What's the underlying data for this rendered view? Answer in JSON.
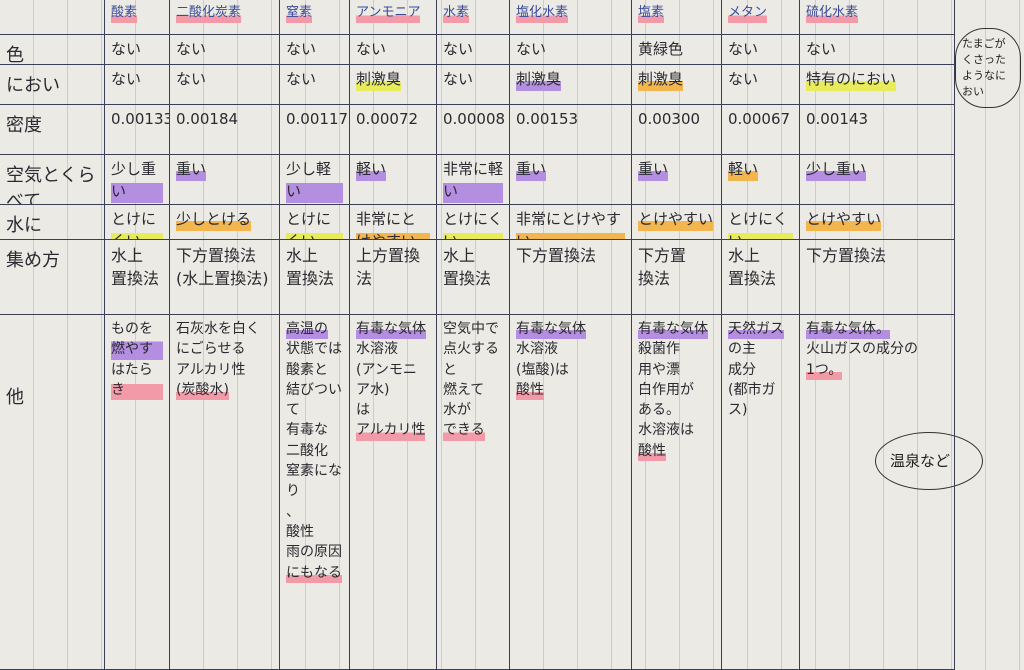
{
  "header": {
    "columns": [
      "酸素",
      "二酸化炭素",
      "窒素",
      "アンモニア",
      "水素",
      "塩化水素",
      "塩素",
      "メタン",
      "硫化水素"
    ]
  },
  "rows": [
    {
      "label": "色",
      "cells": [
        [
          "ない"
        ],
        [
          "ない"
        ],
        [
          "ない"
        ],
        [
          "ない"
        ],
        [
          "ない"
        ],
        [
          "ない"
        ],
        [
          "黄緑色"
        ],
        [
          "ない"
        ],
        [
          "ない"
        ]
      ]
    },
    {
      "label": "におい",
      "cells": [
        [
          "ない"
        ],
        [
          "ない"
        ],
        [
          "ない"
        ],
        [
          "刺激臭"
        ],
        [
          "ない"
        ],
        [
          "刺激臭"
        ],
        [
          "刺激臭"
        ],
        [
          "ない"
        ],
        [
          "特有のにおい"
        ]
      ]
    },
    {
      "label": "密度",
      "cells": [
        [
          "0.00133"
        ],
        [
          "0.00184"
        ],
        [
          "0.00117"
        ],
        [
          "0.00072"
        ],
        [
          "0.00008"
        ],
        [
          "0.00153"
        ],
        [
          "0.00300"
        ],
        [
          "0.00067"
        ],
        [
          "0.00143"
        ]
      ]
    },
    {
      "label": "空気とくらべて",
      "cells": [
        [
          "少し重い"
        ],
        [
          "重い"
        ],
        [
          "少し軽い"
        ],
        [
          "軽い"
        ],
        [
          "非常に軽い"
        ],
        [
          "重い"
        ],
        [
          "重い"
        ],
        [
          "軽い"
        ],
        [
          "少し重い"
        ]
      ]
    },
    {
      "label": "水に",
      "cells": [
        [
          "とけにくい"
        ],
        [
          "少しとける"
        ],
        [
          "とけにくい"
        ],
        [
          "非常にとけやすい"
        ],
        [
          "とけにくい"
        ],
        [
          "非常にとけやすい"
        ],
        [
          "とけやすい"
        ],
        [
          "とけにくい"
        ],
        [
          "とけやすい"
        ]
      ]
    },
    {
      "label": "集め方",
      "cells": [
        [
          "水上",
          "置換法"
        ],
        [
          "下方置換法",
          "(水上置換法)"
        ],
        [
          "水上",
          "置換法"
        ],
        [
          "上方置換",
          "法"
        ],
        [
          "水上",
          "置換法"
        ],
        [
          "下方置換法"
        ],
        [
          "下方置",
          "換法"
        ],
        [
          "水上",
          "置換法"
        ],
        [
          "下方置換法"
        ]
      ]
    },
    {
      "label": "他",
      "cells": [
        [
          "ものを燃やす",
          "はたらき"
        ],
        [
          "石灰水を白く",
          "にごらせる",
          "アルカリ性",
          "(炭酸水)"
        ],
        [
          "高温の",
          "状態では",
          "酸素と",
          "結びついて",
          "有毒な",
          "二酸化",
          "窒素になり",
          "、",
          "酸性",
          "雨の原因",
          "にもなる"
        ],
        [
          "有毒な気体",
          "水溶液",
          "(アンモニア水)",
          "は",
          "アルカリ性"
        ],
        [
          "空気中で",
          "点火すると",
          "燃えて",
          "水が",
          "できる"
        ],
        [
          "有毒な気体",
          "水溶液",
          "(塩酸)は",
          "酸性"
        ],
        [
          "有毒な気体",
          "殺菌作",
          "用や漂",
          "白作用が",
          "ある。",
          "水溶液は",
          "酸性"
        ],
        [
          "天然ガス",
          "の主",
          "成分",
          "(都市ガス)"
        ],
        [
          "有毒な気体。",
          "火山ガスの成分の",
          "1つ。"
        ]
      ]
    }
  ],
  "notes": [
    "たまごがくさったようなにおい",
    "温泉など"
  ]
}
